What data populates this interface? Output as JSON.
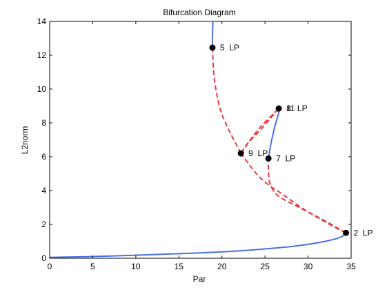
{
  "chart_data": {
    "type": "line",
    "title": "Bifurcation Diagram",
    "xlabel": "Par",
    "ylabel": "L2norm",
    "xlim": [
      0,
      35
    ],
    "ylim": [
      0,
      14
    ],
    "xticks": [
      0,
      5,
      10,
      15,
      20,
      25,
      30,
      35
    ],
    "yticks": [
      0,
      2,
      4,
      6,
      8,
      10,
      12,
      14
    ],
    "grid": false,
    "legend": "none",
    "colors": {
      "stable": "#4a6fe3",
      "unstable": "#e8393e",
      "point": "#000000"
    },
    "series": [
      {
        "style": "solid",
        "color": "#4a6fe3",
        "points": [
          [
            0,
            0.05
          ],
          [
            5,
            0.1
          ],
          [
            10,
            0.18
          ],
          [
            15,
            0.27
          ],
          [
            20,
            0.38
          ],
          [
            25,
            0.55
          ],
          [
            29,
            0.75
          ],
          [
            32,
            1.0
          ],
          [
            33.8,
            1.25
          ],
          [
            34.4,
            1.5
          ]
        ]
      },
      {
        "style": "dashed",
        "color": "#e8393e",
        "points": [
          [
            34.4,
            1.5
          ],
          [
            32.5,
            2.0
          ],
          [
            29.5,
            2.9
          ],
          [
            27,
            3.8
          ],
          [
            25.5,
            4.3
          ],
          [
            24,
            5.0
          ],
          [
            22.2,
            6.2
          ]
        ]
      },
      {
        "style": "dashed",
        "color": "#e8393e",
        "points": [
          [
            34.4,
            1.5
          ],
          [
            32,
            2.2
          ],
          [
            29,
            3.0
          ],
          [
            26.5,
            3.7
          ],
          [
            25.6,
            4.4
          ],
          [
            25.4,
            5.2
          ],
          [
            25.4,
            5.9
          ]
        ]
      },
      {
        "style": "solid",
        "color": "#4a6fe3",
        "points": [
          [
            25.4,
            5.9
          ],
          [
            25.7,
            6.8
          ],
          [
            26.2,
            7.9
          ],
          [
            26.6,
            8.6
          ],
          [
            26.6,
            8.85
          ]
        ]
      },
      {
        "style": "dashed",
        "color": "#e8393e",
        "points": [
          [
            26.6,
            8.85
          ],
          [
            24.5,
            7.6
          ],
          [
            23,
            6.8
          ],
          [
            22.2,
            6.2
          ]
        ]
      },
      {
        "style": "dashed",
        "color": "#e8393e",
        "points": [
          [
            22.2,
            6.2
          ],
          [
            24.2,
            7.6
          ],
          [
            26.6,
            8.85
          ]
        ]
      },
      {
        "style": "dashed",
        "color": "#e8393e",
        "points": [
          [
            22.2,
            6.2
          ],
          [
            20.6,
            7.8
          ],
          [
            19.7,
            9.0
          ],
          [
            19.1,
            10.7
          ],
          [
            18.9,
            12.45
          ]
        ]
      },
      {
        "style": "solid",
        "color": "#4a6fe3",
        "points": [
          [
            18.9,
            12.45
          ],
          [
            18.9,
            13.0
          ],
          [
            18.95,
            14.0
          ]
        ]
      }
    ],
    "special_points": [
      {
        "x": 34.4,
        "y": 1.5,
        "label": "2  LP"
      },
      {
        "x": 18.9,
        "y": 12.45,
        "label": "5  LP"
      },
      {
        "x": 25.4,
        "y": 5.9,
        "label": "7  LP"
      },
      {
        "x": 26.6,
        "y": 8.85,
        "label": "8"
      },
      {
        "x": 26.6,
        "y": 8.85,
        "label": "11 LP"
      },
      {
        "x": 22.2,
        "y": 6.2,
        "label": "9  LP"
      }
    ]
  }
}
